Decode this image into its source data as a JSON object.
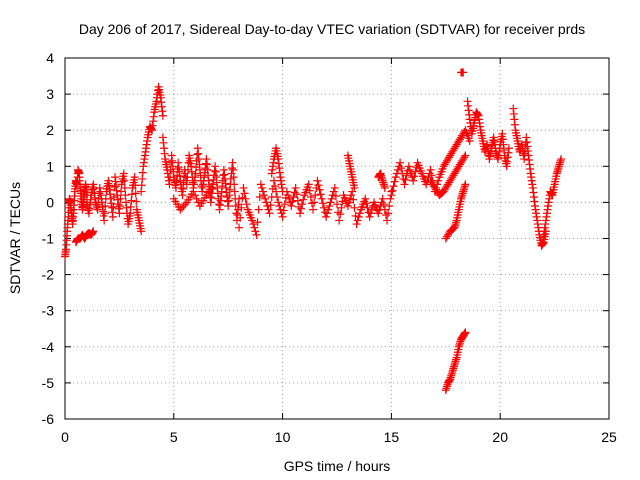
{
  "chart_data": {
    "type": "scatter",
    "title": "Day 206 of 2017, Sidereal Day-to-day VTEC variation (SDTVAR) for receiver prds",
    "xlabel": "GPS time / hours",
    "ylabel": "SDTVAR / TECUs",
    "xlim": [
      0,
      25
    ],
    "ylim": [
      -6,
      4
    ],
    "xticks": [
      "0",
      "5",
      "10",
      "15",
      "20",
      "25"
    ],
    "yticks": [
      "4",
      "3",
      "2",
      "1",
      "0",
      "-1",
      "-2",
      "-3",
      "-4",
      "-5",
      "-6"
    ],
    "grid": true,
    "marker": "plus",
    "color": "#ff0000",
    "series": [
      {
        "name": "SDTVAR",
        "segments": [
          {
            "x": [
              0.0,
              0.05,
              0.1,
              0.15,
              0.2,
              0.25,
              0.3,
              0.35,
              0.4,
              0.45,
              0.5,
              0.55,
              0.6,
              0.65,
              0.7,
              0.75,
              0.8,
              0.85,
              0.9,
              0.95,
              1.0
            ],
            "y": [
              -1.5,
              -1.3,
              -0.8,
              -0.4,
              0.1,
              0.0,
              -0.3,
              -0.6,
              -0.2,
              0.3,
              0.6,
              0.5,
              0.9,
              0.8,
              0.4,
              0.1,
              -0.2,
              0.0,
              0.3,
              0.5,
              0.2
            ]
          },
          {
            "x": [
              0.5,
              0.6,
              0.7,
              0.8,
              0.9,
              1.0,
              1.1,
              1.2,
              1.3
            ],
            "y": [
              -1.1,
              -1.0,
              -1.0,
              -0.9,
              -1.0,
              -0.9,
              -0.85,
              -0.9,
              -0.8
            ]
          },
          {
            "x": [
              1.0,
              1.1,
              1.2,
              1.3,
              1.4,
              1.5,
              1.6,
              1.7,
              1.8,
              1.9,
              2.0,
              2.1,
              2.2,
              2.3,
              2.4,
              2.5,
              2.6,
              2.7,
              2.8,
              2.9,
              3.0,
              3.1,
              3.2,
              3.3,
              3.4,
              3.5
            ],
            "y": [
              0.0,
              -0.3,
              0.2,
              0.5,
              0.0,
              -0.2,
              0.4,
              0.0,
              -0.5,
              0.3,
              0.6,
              0.1,
              -0.4,
              0.7,
              0.2,
              -0.3,
              0.5,
              0.8,
              0.0,
              -0.6,
              -0.3,
              0.4,
              0.7,
              -0.2,
              -0.5,
              -0.8
            ]
          },
          {
            "x": [
              3.5,
              3.6,
              3.7,
              3.8,
              3.9,
              4.0,
              4.1,
              4.2,
              4.3,
              4.4,
              4.5
            ],
            "y": [
              0.3,
              1.0,
              1.4,
              1.8,
              2.1,
              2.0,
              2.5,
              2.8,
              3.2,
              2.9,
              2.4
            ]
          },
          {
            "x": [
              4.5,
              4.6,
              4.7,
              4.8,
              4.9,
              5.0,
              5.1,
              5.2,
              5.3,
              5.4,
              5.5,
              5.6,
              5.7,
              5.8,
              5.9,
              6.0,
              6.1,
              6.2,
              6.3,
              6.4,
              6.5,
              6.6,
              6.7,
              6.8,
              6.9,
              7.0,
              7.1,
              7.2,
              7.3,
              7.4,
              7.5,
              7.6,
              7.7,
              7.8,
              7.9,
              8.0
            ],
            "y": [
              1.8,
              1.2,
              0.9,
              0.5,
              1.3,
              0.7,
              0.4,
              1.1,
              0.6,
              0.2,
              0.9,
              0.5,
              1.3,
              1.0,
              0.4,
              0.8,
              1.5,
              0.9,
              0.3,
              0.7,
              1.2,
              0.6,
              0.0,
              0.5,
              1.0,
              0.4,
              -0.2,
              0.3,
              0.9,
              0.4,
              -0.1,
              0.5,
              1.1,
              0.3,
              -0.5,
              0.1
            ]
          },
          {
            "x": [
              5.0,
              5.3,
              5.6,
              5.9,
              6.2,
              6.5,
              6.8
            ],
            "y": [
              0.1,
              -0.2,
              0.0,
              0.3,
              -0.1,
              0.2,
              0.5
            ]
          },
          {
            "x": [
              8.0,
              8.2,
              8.4,
              8.6,
              8.8,
              9.0,
              9.2,
              9.4,
              9.6,
              9.8,
              10.0,
              10.2,
              10.4,
              10.6,
              10.8,
              11.0,
              11.2,
              11.4,
              11.6,
              11.8,
              12.0,
              12.2,
              12.4,
              12.6,
              12.8,
              13.0,
              13.2,
              13.4,
              13.6,
              13.8,
              14.0,
              14.2,
              14.4,
              14.6,
              14.8,
              15.0
            ],
            "y": [
              -0.7,
              0.4,
              -0.2,
              -0.5,
              -0.9,
              0.5,
              0.1,
              -0.3,
              0.6,
              0.0,
              -0.4,
              0.3,
              -0.1,
              0.4,
              -0.3,
              0.2,
              0.5,
              -0.2,
              0.6,
              0.1,
              -0.4,
              0.0,
              0.4,
              -0.5,
              0.2,
              -0.1,
              0.3,
              -0.6,
              -0.2,
              0.1,
              -0.4,
              0.0,
              -0.3,
              0.1,
              -0.5,
              0.3
            ]
          },
          {
            "x": [
              9.5,
              9.6,
              9.7,
              9.8,
              9.9,
              10.0
            ],
            "y": [
              0.8,
              1.2,
              1.5,
              1.2,
              0.7,
              0.3
            ]
          },
          {
            "x": [
              13.0,
              13.1,
              13.2,
              13.3
            ],
            "y": [
              1.3,
              1.0,
              0.7,
              0.4
            ]
          },
          {
            "x": [
              14.4,
              14.5,
              14.6,
              14.7
            ],
            "y": [
              0.7,
              0.8,
              0.6,
              0.4
            ]
          },
          {
            "x": [
              15.0,
              15.2,
              15.4,
              15.6,
              15.8,
              16.0,
              16.2,
              16.4,
              16.6,
              16.8,
              17.0,
              17.2,
              17.4,
              17.6,
              17.8,
              18.0,
              18.2,
              18.4,
              18.6
            ],
            "y": [
              0.2,
              0.7,
              1.1,
              0.5,
              1.0,
              0.6,
              1.1,
              0.8,
              0.5,
              0.9,
              0.3,
              0.7,
              1.0,
              1.2,
              1.4,
              1.6,
              1.8,
              2.0,
              1.7
            ]
          },
          {
            "x": [
              16.8,
              17.0,
              17.2,
              17.4,
              17.6,
              17.8,
              18.0,
              18.2,
              18.4
            ],
            "y": [
              0.6,
              0.4,
              0.2,
              0.3,
              0.5,
              0.7,
              0.9,
              1.1,
              1.3
            ]
          },
          {
            "x": [
              17.5,
              17.7,
              17.9,
              18.0,
              18.1,
              18.2,
              18.3,
              18.4
            ],
            "y": [
              -1.0,
              -0.8,
              -0.7,
              -0.5,
              -0.2,
              0.1,
              0.3,
              0.5
            ]
          },
          {
            "x": [
              17.5,
              17.6,
              17.7,
              17.8,
              17.9,
              18.0,
              18.1,
              18.2,
              18.3,
              18.4
            ],
            "y": [
              -5.2,
              -5.0,
              -4.9,
              -4.7,
              -4.5,
              -4.3,
              -4.0,
              -3.8,
              -3.7,
              -3.6
            ]
          },
          {
            "x": [
              18.2,
              18.3
            ],
            "y": [
              3.6,
              3.6
            ]
          },
          {
            "x": [
              18.5,
              18.6,
              18.7,
              18.8,
              18.9,
              19.0,
              19.1,
              19.2,
              19.3,
              19.4,
              19.5,
              19.6,
              19.7,
              19.8,
              19.9,
              20.0,
              20.1,
              20.2,
              20.3,
              20.4
            ],
            "y": [
              2.8,
              2.3,
              1.9,
              2.2,
              2.5,
              2.4,
              2.0,
              1.7,
              1.4,
              1.6,
              1.2,
              1.5,
              1.8,
              1.4,
              1.2,
              1.6,
              1.9,
              1.3,
              1.0,
              1.5
            ]
          },
          {
            "x": [
              20.6,
              20.7,
              20.8,
              20.9,
              21.0,
              21.1,
              21.2,
              21.3,
              21.4,
              21.5,
              21.6,
              21.7,
              21.8,
              21.9,
              22.0,
              22.1
            ],
            "y": [
              2.6,
              2.0,
              1.7,
              1.4,
              1.6,
              1.2,
              1.8,
              1.3,
              0.8,
              0.4,
              -0.1,
              -0.5,
              -0.9,
              -1.2,
              -1.1,
              -0.8
            ]
          },
          {
            "x": [
              22.0,
              22.1,
              22.2,
              22.3,
              22.4,
              22.5,
              22.6,
              22.7,
              22.8
            ],
            "y": [
              -0.9,
              -0.5,
              -0.1,
              0.3,
              0.2,
              0.5,
              0.8,
              1.0,
              1.2
            ]
          }
        ]
      }
    ]
  }
}
